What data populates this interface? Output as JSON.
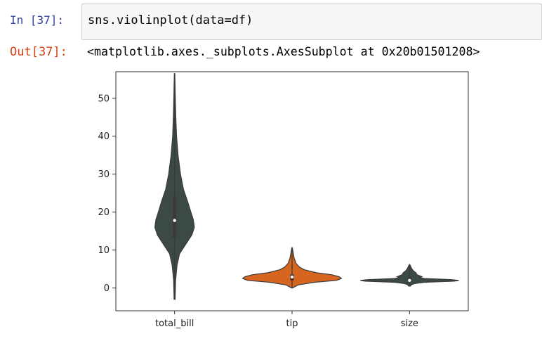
{
  "cell": {
    "in_prompt": "In [37]:",
    "code": "sns.violinplot(data=df)",
    "out_prompt": "Out[37]:",
    "output_text": "<matplotlib.axes._subplots.AxesSubplot at 0x20b01501208>"
  },
  "chart_data": {
    "type": "violin",
    "title": "",
    "xlabel": "",
    "ylabel": "",
    "categories": [
      "total_bill",
      "tip",
      "size"
    ],
    "ylim": [
      -6,
      57
    ],
    "yticks": [
      0,
      10,
      20,
      30,
      40,
      50
    ],
    "grid": false,
    "colors": [
      "#3c4a45",
      "#d6651f",
      "#3c4a45"
    ],
    "violins": [
      {
        "name": "total_bill",
        "min": -3,
        "max": 56.5,
        "q1": 13.3,
        "median": 17.8,
        "q3": 24.1,
        "profile": [
          [
            -3,
            0.01
          ],
          [
            2,
            0.02
          ],
          [
            6,
            0.05
          ],
          [
            9,
            0.1
          ],
          [
            12,
            0.25
          ],
          [
            14,
            0.35
          ],
          [
            16,
            0.4
          ],
          [
            18,
            0.38
          ],
          [
            20,
            0.33
          ],
          [
            23,
            0.26
          ],
          [
            26,
            0.18
          ],
          [
            30,
            0.12
          ],
          [
            35,
            0.07
          ],
          [
            40,
            0.04
          ],
          [
            45,
            0.025
          ],
          [
            50,
            0.015
          ],
          [
            56.5,
            0.005
          ]
        ]
      },
      {
        "name": "tip",
        "min": 0,
        "max": 10.6,
        "q1": 2.0,
        "median": 2.9,
        "q3": 3.6,
        "profile": [
          [
            0,
            0.01
          ],
          [
            0.8,
            0.12
          ],
          [
            1.5,
            0.45
          ],
          [
            2,
            0.9
          ],
          [
            2.5,
            1
          ],
          [
            3,
            0.95
          ],
          [
            3.5,
            0.8
          ],
          [
            4,
            0.5
          ],
          [
            4.8,
            0.25
          ],
          [
            5.5,
            0.15
          ],
          [
            6.5,
            0.08
          ],
          [
            8,
            0.04
          ],
          [
            9.5,
            0.02
          ],
          [
            10.6,
            0.005
          ]
        ]
      },
      {
        "name": "size",
        "min": 0.5,
        "max": 6.2,
        "q1": 2.0,
        "median": 2.0,
        "q3": 3.0,
        "profile": [
          [
            0.5,
            0.02
          ],
          [
            0.9,
            0.04
          ],
          [
            1.2,
            0.12
          ],
          [
            1.5,
            0.3
          ],
          [
            1.8,
            0.9
          ],
          [
            2,
            1
          ],
          [
            2.2,
            0.85
          ],
          [
            2.5,
            0.3
          ],
          [
            2.8,
            0.2
          ],
          [
            3,
            0.25
          ],
          [
            3.5,
            0.15
          ],
          [
            4,
            0.13
          ],
          [
            4.5,
            0.08
          ],
          [
            5,
            0.05
          ],
          [
            5.5,
            0.03
          ],
          [
            6.2,
            0.005
          ]
        ]
      }
    ]
  }
}
